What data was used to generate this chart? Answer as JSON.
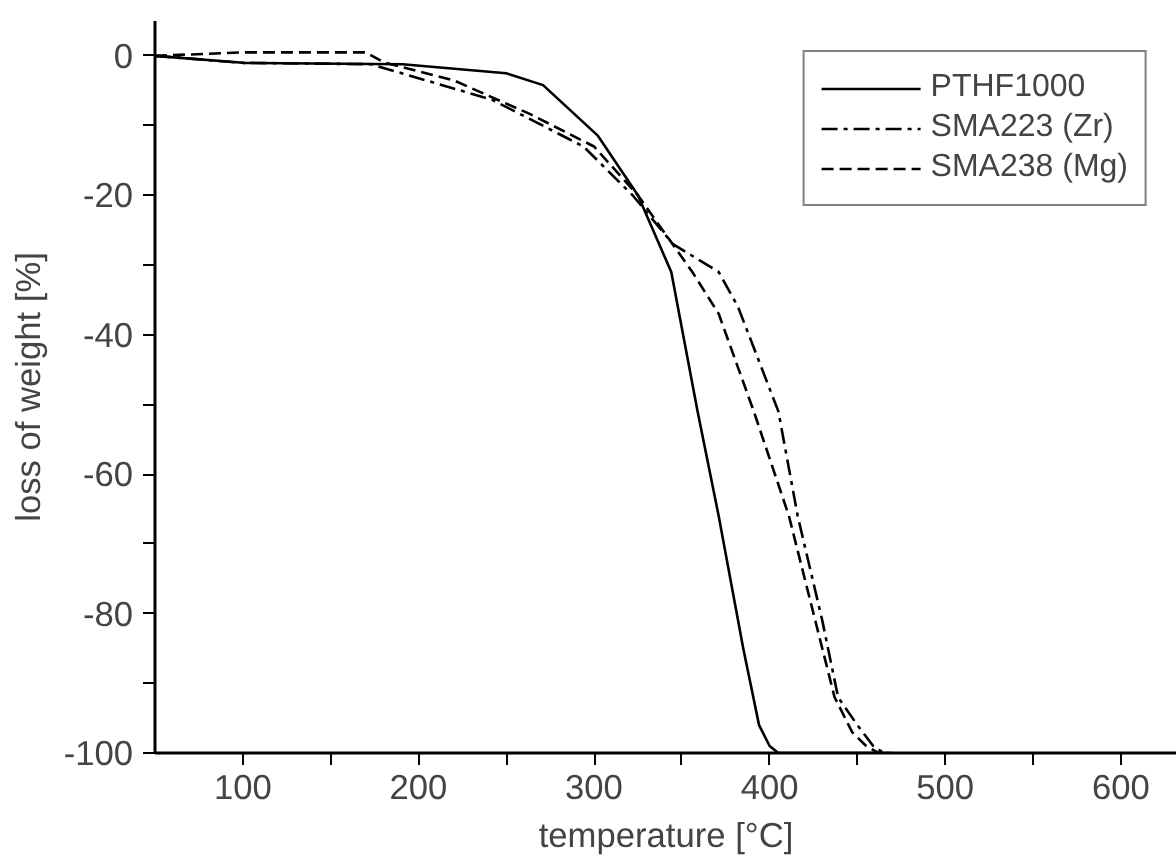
{
  "chart_data": {
    "type": "line",
    "xlabel": "temperature [°C]",
    "ylabel": "loss of weight [%]",
    "xlim": [
      50,
      632
    ],
    "ylim": [
      -100,
      5
    ],
    "xticks": [
      100,
      {
        "value": 150,
        "label": null
      },
      200,
      {
        "value": 250,
        "label": null
      },
      300,
      {
        "value": 350,
        "label": null
      },
      400,
      {
        "value": 450,
        "label": null
      },
      500,
      {
        "value": 550,
        "label": null
      },
      600
    ],
    "yticks": [
      -100,
      {
        "value": -90,
        "label": null
      },
      -80,
      {
        "value": -70,
        "label": null
      },
      -60,
      {
        "value": -50,
        "label": null
      },
      -40,
      {
        "value": -30,
        "label": null
      },
      -20,
      {
        "value": -10,
        "label": null
      },
      0
    ],
    "legend": "top right",
    "grid": false,
    "series": [
      {
        "name": "PTHF1000",
        "color": "#000000",
        "line_style": "solid",
        "x": [
          50,
          100,
          191,
          250,
          271,
          302,
          325,
          344,
          359,
          371,
          385,
          394,
          400,
          405,
          430,
          470
        ],
        "values": [
          0,
          -1,
          -1.2,
          -2.5,
          -4.2,
          -11.4,
          -20,
          -31,
          -51,
          -66,
          -85,
          -96,
          -99,
          -100,
          -100,
          -100
        ]
      },
      {
        "name": "SMA223 (Zr)",
        "color": "#000000",
        "line_style": "dashdot",
        "x": [
          50,
          100,
          173,
          242,
          294,
          322,
          345,
          371,
          382,
          405,
          416,
          430,
          439,
          450,
          459,
          465
        ],
        "values": [
          0,
          -1,
          -1.2,
          -6.3,
          -13,
          -20,
          -27,
          -31,
          -36,
          -51,
          -66,
          -81,
          -92,
          -96,
          -99,
          -100
        ]
      },
      {
        "name": "SMA238 (Mg)",
        "color": "#000000",
        "line_style": "dashed",
        "x": [
          50,
          100,
          170,
          180,
          220,
          264,
          300,
          325,
          356,
          371,
          391,
          411,
          426,
          437,
          447,
          455,
          462
        ],
        "values": [
          0,
          0.5,
          0.5,
          -0.9,
          -3.5,
          -8.4,
          -13,
          -20,
          -31,
          -37,
          -51,
          -66,
          -81,
          -92,
          -97,
          -99,
          -100
        ]
      }
    ]
  }
}
